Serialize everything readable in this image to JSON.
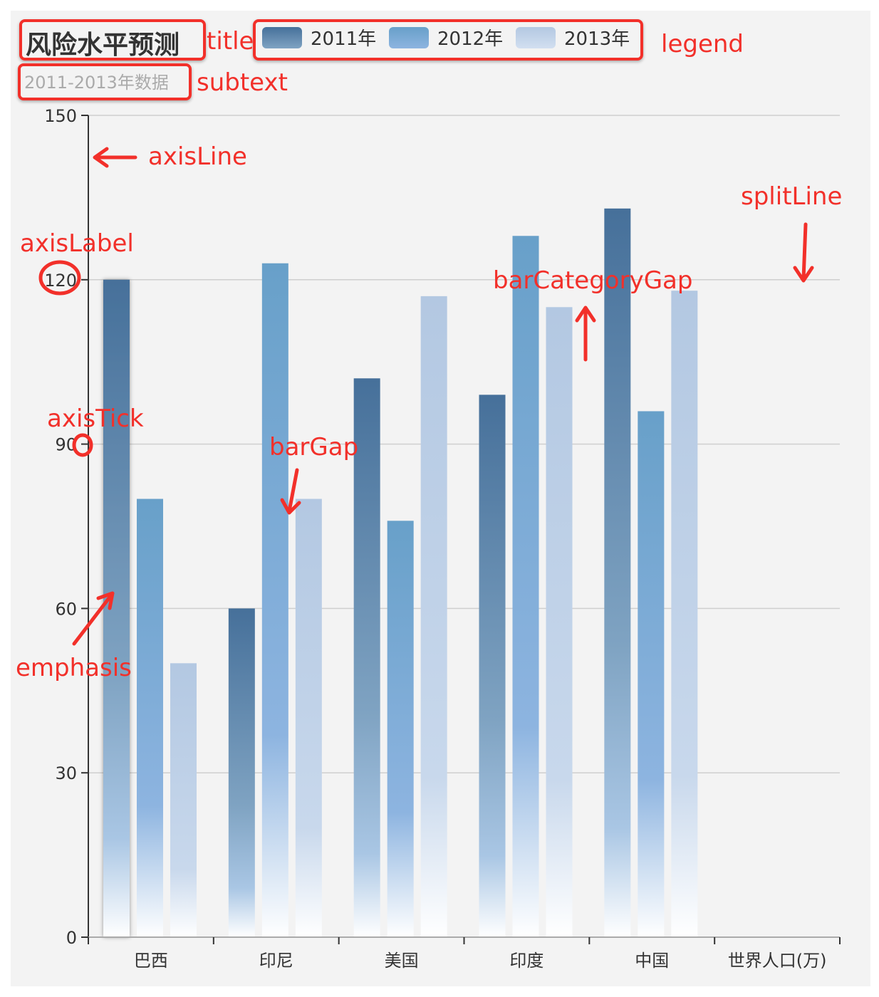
{
  "chart_data": {
    "type": "bar",
    "title": "风险水平预测",
    "subtitle": "2011-2013年数据",
    "categories": [
      "巴西",
      "印尼",
      "美国",
      "印度",
      "中国"
    ],
    "xlabel": "世界人口(万)",
    "ylabel": "",
    "ylim": [
      0,
      150
    ],
    "yticks": [
      "0",
      "30",
      "60",
      "90",
      "120",
      "150"
    ],
    "grid": true,
    "legend_position": "top",
    "series": [
      {
        "name": "2011年",
        "values": [
          120,
          60,
          102,
          99,
          133
        ],
        "color": "#46709a"
      },
      {
        "name": "2012年",
        "values": [
          80,
          123,
          76,
          128,
          96
        ],
        "color": "#6aa3cc"
      },
      {
        "name": "2013年",
        "values": [
          50,
          80,
          117,
          115,
          118
        ],
        "color": "#b3c8e2"
      }
    ]
  },
  "annotations": {
    "title": "title",
    "legend": "legend",
    "subtext": "subtext",
    "axisLine": "axisLine",
    "splitLine": "splitLine",
    "axisLabel": "axisLabel",
    "barCategoryGap": "barCategoryGap",
    "axisTick": "axisTick",
    "barGap": "barGap",
    "emphasis": "emphasis"
  },
  "annotation_color": "#f2302a"
}
